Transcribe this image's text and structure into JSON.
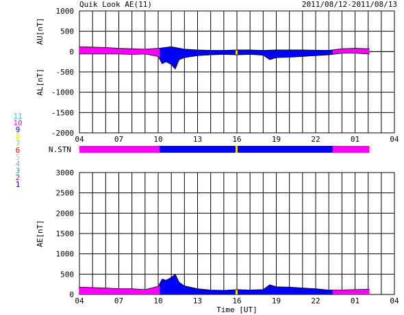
{
  "header": {
    "title": "Quik Look AE(11)",
    "date_range": "2011/08/12-2011/08/13"
  },
  "legend": {
    "items": [
      {
        "label": "11",
        "color": "#00e0e0"
      },
      {
        "label": "10",
        "color": "#ff00ff"
      },
      {
        "label": "9",
        "color": "#0000ff"
      },
      {
        "label": "8",
        "color": "#ffe000"
      },
      {
        "label": "7",
        "color": "#66dd66"
      },
      {
        "label": "6",
        "color": "#ff0000"
      },
      {
        "label": "5",
        "color": "#c0c0c0"
      },
      {
        "label": "4",
        "color": "#a0a0a0"
      },
      {
        "label": "3",
        "color": "#00aaaa"
      },
      {
        "label": "2",
        "color": "#aa00aa"
      },
      {
        "label": "1",
        "color": "#0000cc"
      }
    ]
  },
  "chart_data": [
    {
      "type": "area",
      "title": "",
      "ylabel_upper": "AU[nT]",
      "ylabel_lower": "AL[nT]",
      "xlabel": "",
      "ylim": [
        -2000,
        1000
      ],
      "yticks": [
        1000,
        500,
        0,
        -500,
        -1000,
        -1500,
        -2000
      ],
      "x_range_hours": [
        4,
        28
      ],
      "xtick_labels": [
        "04",
        "07",
        "10",
        "13",
        "16",
        "19",
        "22",
        "01",
        "04"
      ],
      "grid": true,
      "au": {
        "x": [
          4,
          5,
          6,
          7,
          8,
          9,
          10,
          10.5,
          11,
          11.5,
          12,
          13,
          14,
          15,
          16,
          17,
          18,
          19,
          20,
          21,
          22,
          23,
          24,
          25,
          26.1
        ],
        "values": [
          120,
          110,
          100,
          80,
          70,
          60,
          80,
          100,
          120,
          90,
          60,
          40,
          30,
          30,
          40,
          40,
          30,
          40,
          40,
          40,
          35,
          30,
          70,
          80,
          70
        ]
      },
      "al": {
        "x": [
          4,
          5,
          6,
          7,
          8,
          9,
          10,
          10.3,
          10.6,
          11,
          11.3,
          11.6,
          12,
          13,
          14,
          15,
          16,
          17,
          18,
          18.5,
          19,
          20,
          21,
          22,
          23,
          24,
          25,
          26.1
        ],
        "values": [
          -60,
          -60,
          -60,
          -60,
          -70,
          -60,
          -120,
          -300,
          -250,
          -320,
          -430,
          -200,
          -150,
          -100,
          -80,
          -70,
          -80,
          -70,
          -90,
          -200,
          -150,
          -140,
          -120,
          -100,
          -80,
          -40,
          -40,
          -60
        ]
      },
      "station_color_segments": [
        {
          "from": 4,
          "to": 10.1,
          "color": "#ff00ff"
        },
        {
          "from": 10.1,
          "to": 15.9,
          "color": "#0000ff"
        },
        {
          "from": 15.9,
          "to": 16.05,
          "color": "#ffe000"
        },
        {
          "from": 16.05,
          "to": 23.3,
          "color": "#0000ff"
        },
        {
          "from": 23.3,
          "to": 26.1,
          "color": "#ff00ff"
        }
      ]
    },
    {
      "type": "area",
      "title": "",
      "ylabel": "AE[nT]",
      "xlabel": "Time [UT]",
      "ylim": [
        0,
        3000
      ],
      "yticks": [
        3000,
        2500,
        2000,
        1500,
        1000,
        500,
        0
      ],
      "x_range_hours": [
        4,
        28
      ],
      "xtick_labels": [
        "04",
        "07",
        "10",
        "13",
        "16",
        "19",
        "22",
        "01",
        "04"
      ],
      "grid": true,
      "ae": {
        "x": [
          4,
          5,
          6,
          7,
          8,
          9,
          10,
          10.3,
          10.6,
          11,
          11.3,
          11.6,
          12,
          13,
          14,
          15,
          16,
          17,
          18,
          18.5,
          19,
          20,
          21,
          22,
          23,
          24,
          25,
          26.1
        ],
        "values": [
          180,
          170,
          160,
          140,
          140,
          120,
          200,
          380,
          350,
          420,
          500,
          300,
          210,
          140,
          110,
          100,
          120,
          110,
          120,
          240,
          190,
          180,
          160,
          140,
          110,
          110,
          120,
          130
        ]
      }
    }
  ],
  "station_bar": {
    "label": "N.STN"
  }
}
